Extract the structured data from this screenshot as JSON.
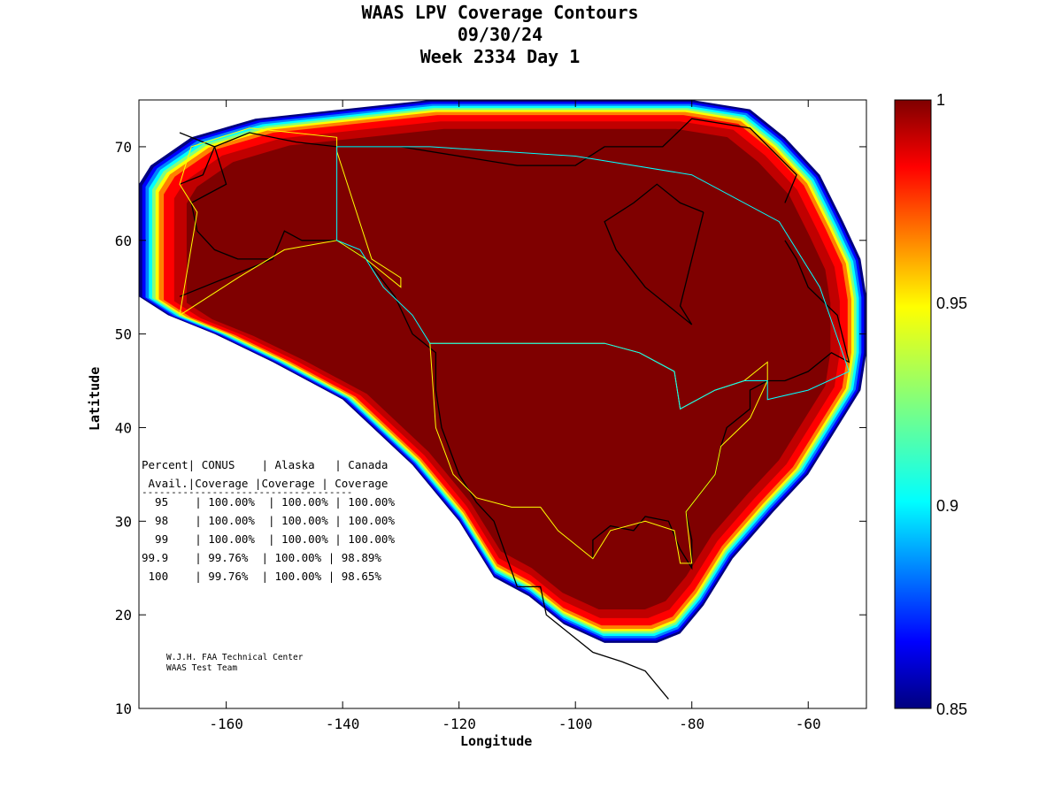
{
  "chart_data": {
    "type": "heatmap",
    "title_lines": [
      "WAAS LPV Coverage Contours",
      "09/30/24",
      "Week 2334 Day 1"
    ],
    "xlabel": "Longitude",
    "ylabel": "Latitude",
    "xlim": [
      -175,
      -50
    ],
    "ylim": [
      10,
      75
    ],
    "x_ticks": [
      -160,
      -140,
      -120,
      -100,
      -80,
      -60
    ],
    "y_ticks": [
      10,
      20,
      30,
      40,
      50,
      60,
      70
    ],
    "x_tick_labels": [
      "-160",
      "-140",
      "-120",
      "-100",
      "-80",
      "-60"
    ],
    "y_tick_labels": [
      "10",
      "20",
      "30",
      "40",
      "50",
      "60",
      "70"
    ],
    "colorbar": {
      "range": [
        0.85,
        1
      ],
      "ticks": [
        1,
        0.95,
        0.9,
        0.85
      ],
      "tick_labels": [
        "1",
        "0.95",
        "0.9",
        "0.85"
      ],
      "colormap": "jet"
    },
    "coverage_region": {
      "description_values": "availability fraction; ~1.0 over North America, falling to 0.85 at coverage edge",
      "boundary_lonlat": [
        [
          -173,
          68
        ],
        [
          -166,
          71
        ],
        [
          -155,
          73
        ],
        [
          -140,
          74
        ],
        [
          -125,
          75
        ],
        [
          -100,
          75
        ],
        [
          -80,
          75
        ],
        [
          -70,
          74
        ],
        [
          -64,
          71
        ],
        [
          -58,
          67
        ],
        [
          -54,
          62
        ],
        [
          -51,
          58
        ],
        [
          -50,
          54
        ],
        [
          -50,
          48
        ],
        [
          -51,
          44
        ],
        [
          -55,
          40
        ],
        [
          -60,
          35
        ],
        [
          -66,
          31
        ],
        [
          -73,
          26
        ],
        [
          -78,
          21
        ],
        [
          -82,
          18
        ],
        [
          -86,
          17
        ],
        [
          -95,
          17
        ],
        [
          -102,
          19
        ],
        [
          -108,
          22
        ],
        [
          -114,
          24
        ],
        [
          -120,
          30
        ],
        [
          -128,
          36
        ],
        [
          -140,
          43
        ],
        [
          -152,
          47
        ],
        [
          -162,
          50
        ],
        [
          -170,
          52
        ],
        [
          -175,
          54
        ],
        [
          -175,
          66
        ]
      ]
    },
    "table": {
      "header1": "Percent| CONUS    | Alaska   | Canada",
      "header2": " Avail.|Coverage |Coverage | Coverage",
      "rule": "------------------------------------",
      "rows": [
        "  95    | 100.00%  | 100.00% | 100.00%",
        "  98    | 100.00%  | 100.00% | 100.00%",
        "  99    | 100.00%  | 100.00% | 100.00%",
        "99.9    | 99.76%  | 100.00% | 98.89%",
        " 100    | 99.76%  | 100.00% | 98.65%"
      ]
    },
    "credit": [
      "W.J.H. FAA Technical Center",
      "WAAS Test Team"
    ]
  }
}
